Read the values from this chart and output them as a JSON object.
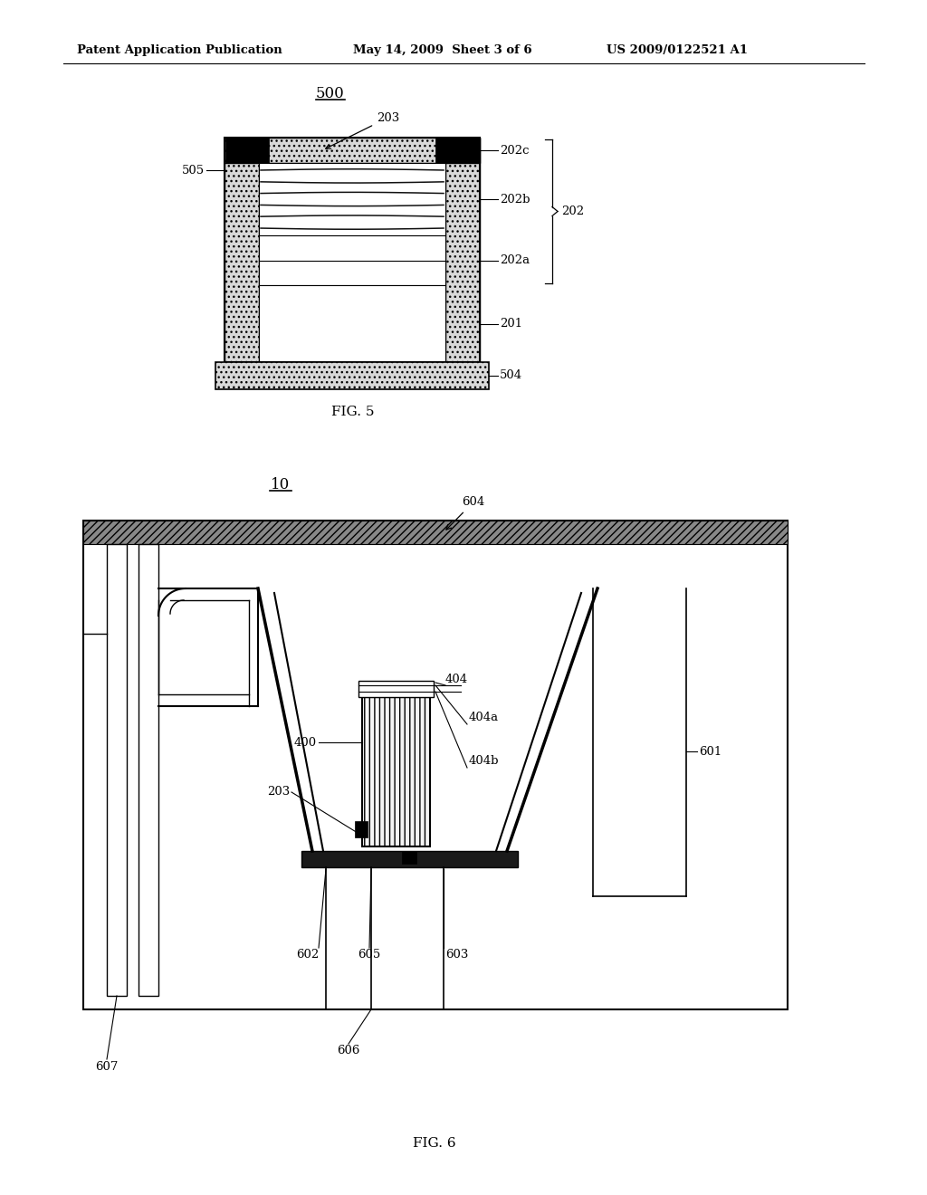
{
  "header_left": "Patent Application Publication",
  "header_mid": "May 14, 2009  Sheet 3 of 6",
  "header_right": "US 2009/0122521 A1",
  "fig5_label": "500",
  "fig5_caption": "FIG. 5",
  "fig6_label": "10",
  "fig6_caption": "FIG. 6",
  "bg_color": "#ffffff",
  "line_color": "#000000"
}
